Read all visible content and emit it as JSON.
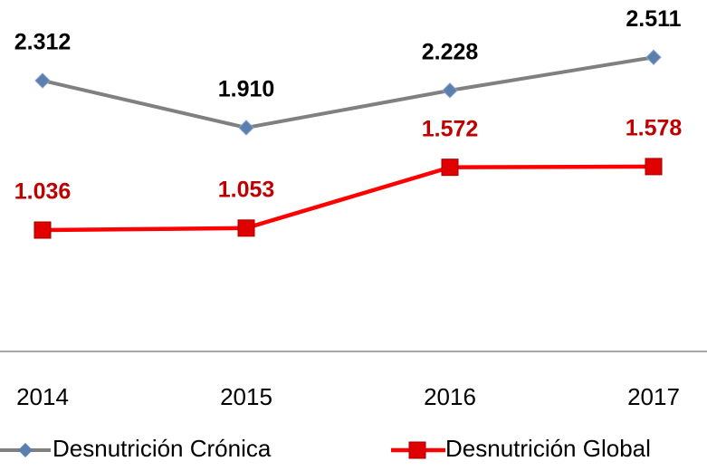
{
  "chart_data": {
    "type": "line",
    "categories": [
      "2014",
      "2015",
      "2016",
      "2017"
    ],
    "series": [
      {
        "name": "Desnutrición Crónica",
        "color": "#808080",
        "marker_color": "#5b7fae",
        "label_color": "#000000",
        "values": [
          2.312,
          1.91,
          2.228,
          2.511
        ],
        "value_labels": [
          "2.312",
          "1.910",
          "2.228",
          "2.511"
        ]
      },
      {
        "name": "Desnutrición Global",
        "color": "#ff0000",
        "marker_color": "#e00000",
        "label_color": "#c00000",
        "values": [
          1.036,
          1.053,
          1.572,
          1.578
        ],
        "value_labels": [
          "1.036",
          "1.053",
          "1.572",
          "1.578"
        ]
      }
    ],
    "ylim": [
      0,
      3
    ]
  }
}
